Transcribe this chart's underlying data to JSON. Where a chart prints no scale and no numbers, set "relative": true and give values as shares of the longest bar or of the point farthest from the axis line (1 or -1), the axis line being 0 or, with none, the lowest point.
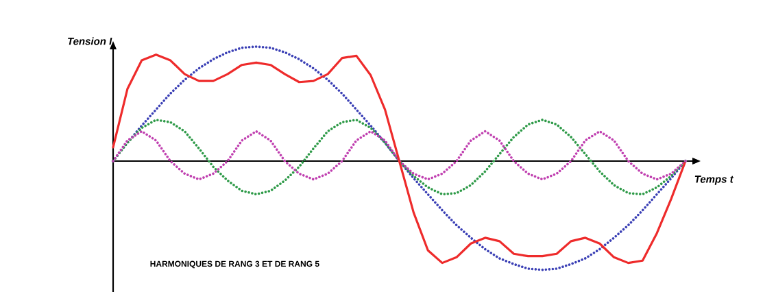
{
  "chart_data": {
    "type": "line",
    "relative": true,
    "xlabel": "Temps t",
    "ylabel": "Tension I",
    "annotations": [
      "HARMONIQUES DE RANG 3 ET DE RANG 5"
    ],
    "categories": [
      null,
      null,
      null,
      null,
      null,
      null,
      null,
      null,
      null,
      null,
      null,
      null,
      null,
      null,
      null,
      null,
      null,
      null,
      null,
      null,
      null,
      null,
      null,
      null,
      null,
      null,
      null,
      null,
      null,
      null,
      null,
      null,
      null,
      null,
      null,
      null,
      null,
      null,
      null,
      null,
      null
    ],
    "series": [
      {
        "color": "#3a3fb5",
        "line_style": "dotted",
        "values": [
          0,
          0.16,
          0.31,
          0.45,
          0.59,
          0.71,
          0.81,
          0.89,
          0.95,
          0.99,
          1,
          0.99,
          0.95,
          0.89,
          0.81,
          0.71,
          0.59,
          0.45,
          0.31,
          0.16,
          0,
          -0.15,
          -0.29,
          -0.43,
          -0.56,
          -0.67,
          -0.77,
          -0.85,
          -0.9,
          -0.94,
          -0.95,
          -0.94,
          -0.9,
          -0.85,
          -0.77,
          -0.67,
          -0.56,
          -0.43,
          -0.29,
          -0.15,
          0
        ]
      },
      {
        "color": "#2e9a48",
        "line_style": "dotted",
        "values": [
          0,
          0.16,
          0.29,
          0.36,
          0.34,
          0.26,
          0.11,
          -0.05,
          -0.17,
          -0.26,
          -0.29,
          -0.26,
          -0.17,
          -0.05,
          0.11,
          0.26,
          0.34,
          0.36,
          0.29,
          0.16,
          0,
          -0.13,
          -0.23,
          -0.29,
          -0.28,
          -0.21,
          -0.09,
          0.06,
          0.21,
          0.32,
          0.36,
          0.32,
          0.21,
          0.06,
          -0.09,
          -0.21,
          -0.28,
          -0.29,
          -0.23,
          -0.13,
          0
        ]
      },
      {
        "color": "#c040b0",
        "line_style": "dotted",
        "values": [
          0,
          0.18,
          0.26,
          0.18,
          0,
          -0.11,
          -0.16,
          -0.11,
          0,
          0.18,
          0.26,
          0.18,
          0,
          -0.11,
          -0.16,
          -0.11,
          0,
          0.18,
          0.26,
          0.18,
          0,
          -0.11,
          -0.16,
          -0.11,
          0,
          0.18,
          0.26,
          0.18,
          0,
          -0.11,
          -0.16,
          -0.11,
          0,
          0.18,
          0.26,
          0.18,
          0,
          -0.11,
          -0.16,
          -0.11,
          0
        ]
      },
      {
        "color": "#ee2b2b",
        "line_style": "solid",
        "values": [
          0.12,
          0.63,
          0.88,
          0.93,
          0.88,
          0.76,
          0.7,
          0.7,
          0.76,
          0.84,
          0.86,
          0.84,
          0.76,
          0.69,
          0.7,
          0.76,
          0.9,
          0.92,
          0.75,
          0.45,
          0,
          -0.45,
          -0.78,
          -0.89,
          -0.84,
          -0.72,
          -0.67,
          -0.7,
          -0.81,
          -0.83,
          -0.83,
          -0.81,
          -0.7,
          -0.67,
          -0.72,
          -0.84,
          -0.89,
          -0.87,
          -0.63,
          -0.33,
          0
        ]
      }
    ]
  }
}
